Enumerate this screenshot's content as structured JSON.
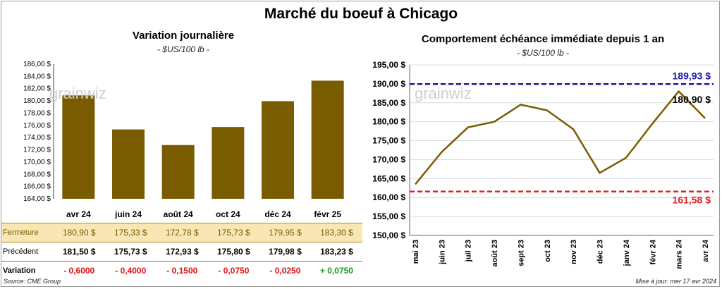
{
  "main_title": "Marché du boeuf à Chicago",
  "footer": {
    "source": "Source: CME Group",
    "updated": "Mise à jour: mer 17 avr 2024"
  },
  "watermark": "grainwiz",
  "colors": {
    "bar": "#7a5c00",
    "line": "#7a5c00",
    "max_line": "#1a1aa0",
    "min_line": "#e02020",
    "close_row_bg": "#f8e7b5",
    "negative": "#e01010",
    "positive": "#1a9a1a"
  },
  "chart_data": [
    {
      "type": "bar",
      "title": "Variation journalière",
      "subtitle": "- $US/100 lb -",
      "categories": [
        "avr 24",
        "juin 24",
        "août 24",
        "oct 24",
        "déc 24",
        "févr 25"
      ],
      "values": [
        180.9,
        175.33,
        172.78,
        175.73,
        179.95,
        183.3
      ],
      "ylim": [
        164,
        186
      ],
      "yticks": [
        "164,00 $",
        "166,00 $",
        "168,00 $",
        "170,00 $",
        "172,00 $",
        "174,00 $",
        "176,00 $",
        "178,00 $",
        "180,00 $",
        "182,00 $",
        "184,00 $",
        "186,00 $"
      ],
      "grid": false
    },
    {
      "type": "line",
      "title": "Comportement  échéance immédiate depuis 1 an",
      "subtitle": "- $US/100 lb -",
      "ylim": [
        150,
        195
      ],
      "yticks": [
        "150,00 $",
        "155,00 $",
        "160,00 $",
        "165,00 $",
        "170,00 $",
        "175,00 $",
        "180,00 $",
        "185,00 $",
        "190,00 $",
        "195,00 $"
      ],
      "xticks": [
        "mai 23",
        "juin 23",
        "juil 23",
        "août 23",
        "sept 23",
        "oct 23",
        "nov 23",
        "déc 23",
        "janv 24",
        "févr 24",
        "mars 24",
        "avr 24"
      ],
      "x": [
        "mai 23",
        "juin 23",
        "juil 23",
        "août 23",
        "sept 23",
        "oct 23",
        "nov 23",
        "déc 23",
        "janv 24",
        "févr 24",
        "mars 24",
        "avr 24"
      ],
      "series": [
        {
          "values": [
            163.5,
            172.0,
            178.5,
            180.0,
            184.5,
            183.0,
            178.0,
            166.5,
            170.5,
            179.5,
            188.0,
            180.9
          ]
        }
      ],
      "max_line": {
        "value": 189.93,
        "label": "189,93 $"
      },
      "min_line": {
        "value": 161.58,
        "label": "161,58 $"
      },
      "last_label": "180,90 $",
      "grid": true
    }
  ],
  "table": {
    "rows": [
      {
        "label": "Fermeture",
        "values": [
          "180,90  $",
          "175,33  $",
          "172,78  $",
          "175,73  $",
          "179,95  $",
          "183,30  $"
        ]
      },
      {
        "label": "Précédent",
        "values": [
          "181,50  $",
          "175,73  $",
          "172,93  $",
          "175,80  $",
          "179,98  $",
          "183,23  $"
        ]
      },
      {
        "label": "Variation",
        "values": [
          "- 0,6000",
          "- 0,4000",
          "- 0,1500",
          "- 0,0750",
          "- 0,0250",
          "+ 0,0750"
        ]
      }
    ]
  }
}
